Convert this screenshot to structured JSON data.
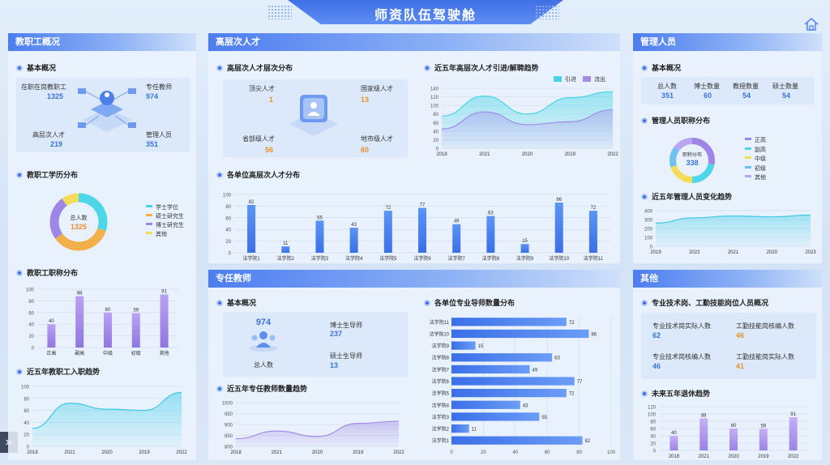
{
  "header": {
    "title": "师资队伍驾驶舱"
  },
  "icons": {
    "home": "home-icon",
    "expand": "double-chevron-right-icon"
  },
  "colors": {
    "accent": "#3a6fe8",
    "purple": "#a48be8",
    "cyan": "#48d6e6",
    "orange": "#e8902a"
  },
  "staff": {
    "title": "教职工概况",
    "basic": {
      "title": "基本概况",
      "items": [
        {
          "label": "在职在岗教职工",
          "value": "1325"
        },
        {
          "label": "专任教师",
          "value": "974"
        },
        {
          "label": "高层次人才",
          "value": "219"
        },
        {
          "label": "管理人员",
          "value": "351"
        }
      ]
    },
    "edu": {
      "title": "教职工学历分布",
      "center_label": "总人数",
      "center_value": "1325",
      "legend": [
        "学士学位",
        "硕士研究生",
        "博士研究生",
        "其他"
      ],
      "legend_colors": [
        "#4dd6e8",
        "#f3b04a",
        "#9d86e6",
        "#f4dc5a"
      ],
      "shares": [
        0.3,
        0.35,
        0.25,
        0.1
      ]
    },
    "title_dist": {
      "title": "教职工职称分布",
      "categories": [
        "正高",
        "副高",
        "中级",
        "初级",
        "其他"
      ],
      "values": [
        40,
        88,
        60,
        59,
        91
      ],
      "yticks": [
        "0",
        "20",
        "40",
        "60",
        "80",
        "100"
      ]
    },
    "hire": {
      "title": "近五年教职工入职趋势",
      "x": [
        "2018",
        "2021",
        "2020",
        "2019",
        "2022"
      ],
      "yticks": [
        "0",
        "20",
        "40",
        "60",
        "80",
        "100"
      ]
    }
  },
  "talent": {
    "title": "高层次人才",
    "levels": {
      "title": "高层次人才层次分布",
      "items": [
        {
          "label": "顶尖人才",
          "value": "1"
        },
        {
          "label": "国家级人才",
          "value": "13"
        },
        {
          "label": "省部级人才",
          "value": "56"
        },
        {
          "label": "地市级人才",
          "value": "60"
        }
      ]
    },
    "trend": {
      "title": "近五年高层次人才引进/解聘趋势",
      "legend": [
        "引进",
        "流出"
      ],
      "x": [
        "2018",
        "2021",
        "2020",
        "2019",
        "2022"
      ],
      "yticks": [
        "0",
        "20",
        "40",
        "60",
        "80",
        "100",
        "120",
        "140"
      ]
    },
    "units": {
      "title": "各单位高层次人才分布",
      "categories": [
        "法学院1",
        "法学院2",
        "法学院3",
        "法学院4",
        "法学院5",
        "法学院6",
        "法学院7",
        "法学院8",
        "法学院9",
        "法学院10",
        "法学院11"
      ],
      "values": [
        82,
        11,
        55,
        43,
        72,
        77,
        49,
        63,
        15,
        86,
        72
      ],
      "yticks": [
        "0",
        "20",
        "40",
        "60",
        "80",
        "100"
      ]
    }
  },
  "teachers": {
    "title": "专任教师",
    "basic": {
      "title": "基本概况",
      "total_value": "974",
      "total_label": "总人数",
      "items": [
        {
          "label": "博士生导师",
          "value": "237"
        },
        {
          "label": "硕士生导师",
          "value": "13"
        }
      ]
    },
    "trend": {
      "title": "近五年专任教师数量趋势",
      "x": [
        "2018",
        "2021",
        "2020",
        "2019",
        "2022"
      ],
      "yticks": [
        "800",
        "850",
        "900",
        "950",
        "1000"
      ]
    },
    "mentors": {
      "title": "各单位专业导师数量分布",
      "categories": [
        "法学院11",
        "法学院10",
        "法学院9",
        "法学院8",
        "法学院7",
        "法学院6",
        "法学院5",
        "法学院4",
        "法学院3",
        "法学院2",
        "法学院1"
      ],
      "values": [
        72,
        86,
        15,
        63,
        49,
        77,
        72,
        43,
        55,
        11,
        82
      ],
      "xticks": [
        "0",
        "20",
        "40",
        "60",
        "80",
        "100"
      ]
    }
  },
  "mgmt": {
    "title": "管理人员",
    "basic": {
      "title": "基本概况",
      "items": [
        {
          "label": "总人数",
          "value": "351"
        },
        {
          "label": "博士数量",
          "value": "60"
        },
        {
          "label": "教授数量",
          "value": "54"
        },
        {
          "label": "硕士数量",
          "value": "54"
        }
      ]
    },
    "rank": {
      "title": "管理人员职称分布",
      "center_label": "职称分布",
      "center_value": "338",
      "legend": [
        "正高",
        "副高",
        "中级",
        "初级",
        "其他"
      ],
      "legend_colors": [
        "#9d86e6",
        "#4dd6e8",
        "#f4dc5a",
        "#6ec1f0",
        "#b9a6f0"
      ],
      "shares": [
        0.28,
        0.22,
        0.2,
        0.15,
        0.15
      ]
    },
    "trend": {
      "title": "近五年管理人员变化趋势",
      "x": [
        "2019",
        "2022",
        "2021",
        "2020",
        "2023"
      ],
      "yticks": [
        "0",
        "100",
        "200",
        "300",
        "400"
      ]
    }
  },
  "other": {
    "title": "其他",
    "posts": {
      "title": "专业技术岗、工勤技能岗位人员概况",
      "items": [
        {
          "label": "专业技术岗实际人数",
          "value": "62"
        },
        {
          "label": "工勤技能岗核编人数",
          "value": "46"
        },
        {
          "label": "专业技术岗核编人数",
          "value": "46"
        },
        {
          "label": "工勤技能岗实际人数",
          "value": "41"
        }
      ]
    },
    "retire": {
      "title": "未来五年退休趋势",
      "categories": [
        "2018",
        "2021",
        "2020",
        "2019",
        "2022"
      ],
      "values": [
        40,
        88,
        60,
        59,
        91
      ],
      "yticks": [
        "0",
        "20",
        "40",
        "60",
        "80",
        "100",
        "120"
      ]
    }
  },
  "chart_data": [
    {
      "type": "bar",
      "title": "教职工职称分布",
      "categories": [
        "正高",
        "副高",
        "中级",
        "初级",
        "其他"
      ],
      "values": [
        40,
        88,
        60,
        59,
        91
      ],
      "ylim": [
        0,
        100
      ]
    },
    {
      "type": "area",
      "title": "近五年教职工入职趋势",
      "x": [
        "2018",
        "2021",
        "2020",
        "2019",
        "2022"
      ],
      "values": [
        30,
        72,
        62,
        60,
        90
      ],
      "ylim": [
        0,
        100
      ]
    },
    {
      "type": "area",
      "title": "近五年高层次人才引进/解聘趋势",
      "x": [
        "2018",
        "2021",
        "2020",
        "2019",
        "2022"
      ],
      "series": [
        {
          "name": "引进",
          "values": [
            75,
            122,
            80,
            118,
            132
          ]
        },
        {
          "name": "流出",
          "values": [
            45,
            85,
            55,
            62,
            90
          ]
        }
      ],
      "ylim": [
        0,
        140
      ]
    },
    {
      "type": "bar",
      "title": "各单位高层次人才分布",
      "categories": [
        "法学院1",
        "法学院2",
        "法学院3",
        "法学院4",
        "法学院5",
        "法学院6",
        "法学院7",
        "法学院8",
        "法学院9",
        "法学院10",
        "法学院11"
      ],
      "values": [
        82,
        11,
        55,
        43,
        72,
        77,
        49,
        63,
        15,
        86,
        72
      ],
      "ylim": [
        0,
        100
      ]
    },
    {
      "type": "area",
      "title": "近五年专任教师数量趋势",
      "x": [
        "2018",
        "2021",
        "2020",
        "2019",
        "2022"
      ],
      "values": [
        835,
        870,
        845,
        905,
        915
      ],
      "ylim": [
        800,
        1000
      ]
    },
    {
      "type": "bar",
      "title": "各单位专业导师数量分布",
      "categories": [
        "法学院11",
        "法学院10",
        "法学院9",
        "法学院8",
        "法学院7",
        "法学院6",
        "法学院5",
        "法学院4",
        "法学院3",
        "法学院2",
        "法学院1"
      ],
      "values": [
        72,
        86,
        15,
        63,
        49,
        77,
        72,
        43,
        55,
        11,
        82
      ],
      "xlim": [
        0,
        100
      ]
    },
    {
      "type": "area",
      "title": "近五年管理人员变化趋势",
      "x": [
        "2019",
        "2022",
        "2021",
        "2020",
        "2023"
      ],
      "values": [
        260,
        320,
        340,
        330,
        350
      ],
      "ylim": [
        0,
        400
      ]
    },
    {
      "type": "bar",
      "title": "未来五年退休趋势",
      "categories": [
        "2018",
        "2021",
        "2020",
        "2019",
        "2022"
      ],
      "values": [
        40,
        88,
        60,
        59,
        91
      ],
      "ylim": [
        0,
        120
      ]
    }
  ]
}
